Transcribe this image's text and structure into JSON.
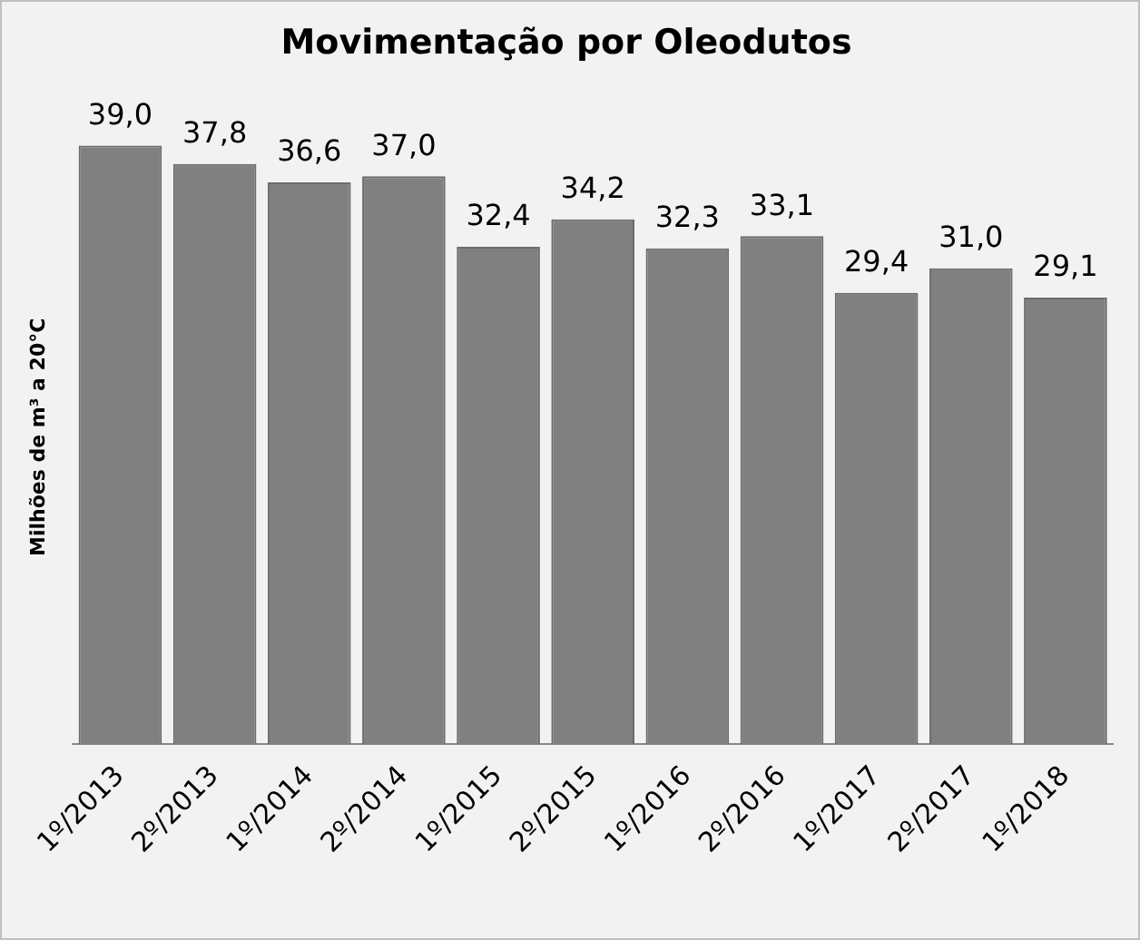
{
  "chart_data": {
    "type": "bar",
    "title": "Movimentação por Oleodutos",
    "ylabel": "Milhões de m³ a 20°C",
    "categories": [
      "1º/2013",
      "2º/2013",
      "1º/2014",
      "2º/2014",
      "1º/2015",
      "2º/2015",
      "1º/2016",
      "2º/2016",
      "1º/2017",
      "2º/2017",
      "1º/2018"
    ],
    "values": [
      39.0,
      37.8,
      36.6,
      37.0,
      32.4,
      34.2,
      32.3,
      33.1,
      29.4,
      31.0,
      29.1
    ],
    "value_labels": [
      "39,0",
      "37,8",
      "36,6",
      "37,0",
      "32,4",
      "34,2",
      "32,3",
      "33,1",
      "29,4",
      "31,0",
      "29,1"
    ],
    "color": "#808080",
    "tick_labels": "x",
    "grid": false,
    "legend": false
  }
}
